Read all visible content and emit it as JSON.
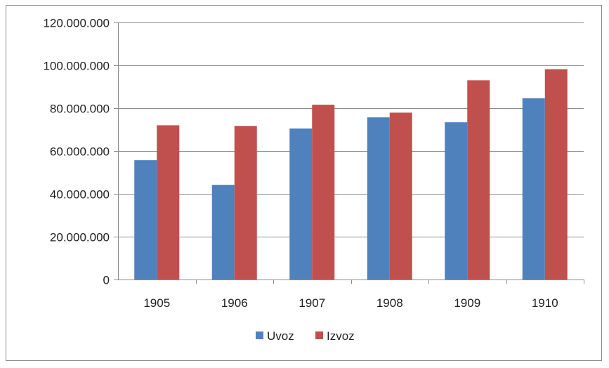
{
  "chart_data": {
    "type": "bar",
    "categories": [
      "1905",
      "1906",
      "1907",
      "1908",
      "1909",
      "1910"
    ],
    "series": [
      {
        "name": "Uvoz",
        "color": "#4f81bd",
        "values": [
          55700000,
          44200000,
          70500000,
          75700000,
          73400000,
          84600000
        ]
      },
      {
        "name": "Izvoz",
        "color": "#c0504d",
        "values": [
          72000000,
          71700000,
          81600000,
          77900000,
          93000000,
          98200000
        ]
      }
    ],
    "ylim": [
      0,
      120000000
    ],
    "y_ticks": [
      0,
      20000000,
      40000000,
      60000000,
      80000000,
      100000000,
      120000000
    ],
    "y_tick_labels": [
      "0",
      "20.000.000",
      "40.000.000",
      "60.000.000",
      "80.000.000",
      "100.000.000",
      "120.000.000"
    ],
    "grid": true,
    "legend_position": "bottom"
  }
}
